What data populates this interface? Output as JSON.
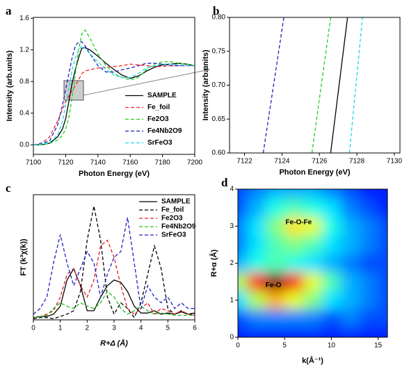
{
  "chart_data": [
    {
      "type": "line",
      "panel_label": "a",
      "xlabel": "Photon Energy (eV)",
      "ylabel": "Intensity (arb.units)",
      "xlim": [
        7100,
        7200
      ],
      "ylim": [
        -0.12,
        1.61
      ],
      "xticks": [
        7100,
        7120,
        7140,
        7160,
        7180,
        7200
      ],
      "yticks": [
        {
          "value": 0,
          "label": "0.0"
        },
        0.4,
        0.8,
        1.2,
        1.6
      ],
      "legend": "lower right",
      "x": [
        7100,
        7105,
        7110,
        7115,
        7118,
        7120,
        7122,
        7124,
        7126,
        7128,
        7130,
        7132,
        7135,
        7140,
        7145,
        7150,
        7155,
        7160,
        7165,
        7170,
        7175,
        7180,
        7185,
        7190,
        7195,
        7200
      ],
      "series": [
        {
          "name": "SAMPLE",
          "color": "#000000",
          "dashed": false,
          "values": [
            0,
            0.0,
            0.02,
            0.1,
            0.2,
            0.33,
            0.55,
            0.78,
            0.95,
            1.1,
            1.22,
            1.23,
            1.2,
            1.12,
            1.03,
            0.95,
            0.88,
            0.84,
            0.87,
            0.93,
            0.98,
            1.01,
            1.02,
            1.03,
            1.02,
            1.0
          ]
        },
        {
          "name": "Fe_foil",
          "color": "#ff2020",
          "dashed": true,
          "values": [
            0,
            0.02,
            0.1,
            0.3,
            0.45,
            0.55,
            0.62,
            0.68,
            0.75,
            0.82,
            0.9,
            0.93,
            0.95,
            0.97,
            0.98,
            0.99,
            1.0,
            1.02,
            1.01,
            1.0,
            0.99,
            0.99,
            1.0,
            1.0,
            1.0,
            1.0
          ]
        },
        {
          "name": "Fe2O3",
          "color": "#20d020",
          "dashed": true,
          "values": [
            0,
            0,
            0.02,
            0.06,
            0.12,
            0.2,
            0.35,
            0.6,
            0.9,
            1.2,
            1.4,
            1.45,
            1.35,
            1.15,
            1.0,
            0.9,
            0.85,
            0.82,
            0.85,
            0.95,
            1.02,
            1.05,
            1.05,
            1.03,
            1.02,
            1.0
          ]
        },
        {
          "name": "Fe4Nb2O9",
          "color": "#2020c0",
          "dashed": true,
          "values": [
            0,
            0.02,
            0.05,
            0.25,
            0.5,
            0.7,
            0.9,
            1.1,
            1.25,
            1.3,
            1.3,
            1.25,
            1.15,
            1.0,
            0.92,
            0.92,
            0.95,
            0.97,
            1.0,
            1.03,
            1.03,
            1.02,
            1.0,
            1.0,
            1.0,
            1.0
          ]
        },
        {
          "name": "SrFeO3",
          "color": "#20d8e8",
          "dashed": true,
          "values": [
            0,
            0.01,
            0.03,
            0.12,
            0.3,
            0.5,
            0.7,
            0.95,
            1.1,
            1.2,
            1.25,
            1.22,
            1.15,
            1.05,
            0.95,
            0.88,
            0.85,
            0.85,
            0.9,
            0.97,
            1.0,
            1.02,
            1.02,
            1.01,
            1.0,
            1.0
          ]
        }
      ]
    },
    {
      "type": "line",
      "panel_label": "b",
      "xlabel": "Photon Energy (eV)",
      "ylabel": "Intensity (arb.units)",
      "xlim": [
        7121.2,
        7130.3
      ],
      "ylim": [
        0.6,
        0.8
      ],
      "xticks": [
        7122,
        7124,
        7126,
        7128,
        7130
      ],
      "yticks": [
        {
          "value": 0.6,
          "label": "0.60"
        },
        0.65,
        {
          "value": 0.7,
          "label": "0.70"
        },
        0.75,
        {
          "value": 0.8,
          "label": "0.80"
        }
      ],
      "series": [
        {
          "color": "#2020c0",
          "dashed": true,
          "x": [
            7123.0,
            7124.1
          ],
          "values": [
            0.6,
            0.8
          ]
        },
        {
          "color": "#20d020",
          "dashed": true,
          "x": [
            7125.6,
            7126.6
          ],
          "values": [
            0.6,
            0.8
          ]
        },
        {
          "color": "#000000",
          "dashed": false,
          "x": [
            7126.6,
            7127.5
          ],
          "values": [
            0.6,
            0.8
          ]
        },
        {
          "color": "#20d8e8",
          "dashed": true,
          "x": [
            7127.6,
            7128.3
          ],
          "values": [
            0.6,
            0.8
          ]
        }
      ]
    },
    {
      "type": "line",
      "panel_label": "c",
      "xlabel": "R+Δ (Å)",
      "ylabel": "FT (k³χ(k))",
      "xlim": [
        0,
        6
      ],
      "ylim": [
        0,
        1.1
      ],
      "xticks": [
        0,
        1,
        2,
        3,
        4,
        5,
        6
      ],
      "legend": "upper right",
      "x": [
        0,
        0.25,
        0.5,
        0.75,
        1,
        1.25,
        1.5,
        1.75,
        2,
        2.25,
        2.5,
        2.75,
        3,
        3.25,
        3.5,
        3.75,
        4,
        4.25,
        4.5,
        4.75,
        5,
        5.25,
        5.5,
        5.75,
        6
      ],
      "series": [
        {
          "name": "SAMPLE",
          "color": "#000000",
          "dashed": false,
          "values": [
            0.02,
            0.03,
            0.03,
            0.05,
            0.12,
            0.35,
            0.45,
            0.3,
            0.08,
            0.08,
            0.2,
            0.3,
            0.35,
            0.33,
            0.25,
            0.12,
            0.06,
            0.06,
            0.08,
            0.05,
            0.06,
            0.05,
            0.07,
            0.05,
            0.06
          ]
        },
        {
          "name": "Fe_foil",
          "color": "#000000",
          "dashed": true,
          "values": [
            0.01,
            0.02,
            0.02,
            0.01,
            0.03,
            0.05,
            0.08,
            0.25,
            0.7,
            1.0,
            0.7,
            0.2,
            0.05,
            0.15,
            0.1,
            0.02,
            0.15,
            0.4,
            0.65,
            0.45,
            0.1,
            0.05,
            0.08,
            0.05,
            0.05
          ]
        },
        {
          "name": "Fe2O3",
          "color": "#e02020",
          "dashed": true,
          "values": [
            0.02,
            0.03,
            0.05,
            0.08,
            0.2,
            0.4,
            0.45,
            0.3,
            0.2,
            0.35,
            0.65,
            0.7,
            0.55,
            0.3,
            0.1,
            0.05,
            0.1,
            0.15,
            0.05,
            0.1,
            0.08,
            0.05,
            0.08,
            0.05,
            0.04
          ]
        },
        {
          "name": "Fe4Nb2O9",
          "color": "#20c020",
          "dashed": true,
          "values": [
            0.02,
            0.03,
            0.04,
            0.1,
            0.15,
            0.12,
            0.1,
            0.15,
            0.12,
            0.1,
            0.15,
            0.25,
            0.2,
            0.1,
            0.05,
            0.08,
            0.12,
            0.08,
            0.05,
            0.06,
            0.05,
            0.04,
            0.04,
            0.04,
            0.04
          ]
        },
        {
          "name": "SrFeO3",
          "color": "#2020c0",
          "dashed": true,
          "values": [
            0.05,
            0.1,
            0.2,
            0.5,
            0.75,
            0.5,
            0.3,
            0.45,
            0.6,
            0.5,
            0.2,
            0.4,
            0.55,
            0.6,
            0.9,
            0.5,
            0.1,
            0.3,
            0.2,
            0.15,
            0.2,
            0.1,
            0.15,
            0.1,
            0.1
          ]
        }
      ]
    },
    {
      "type": "heatmap",
      "panel_label": "d",
      "xlabel": "k(Å⁻¹)",
      "ylabel": "R+α (Å)",
      "xlim": [
        0,
        16
      ],
      "ylim": [
        0,
        4
      ],
      "xticks": [
        0,
        5,
        10,
        15
      ],
      "yticks": [
        0,
        1,
        2,
        3,
        4
      ],
      "x": [
        0,
        2,
        4,
        6,
        8,
        10,
        12,
        14,
        16
      ],
      "y": [
        0,
        0.5,
        1,
        1.5,
        2,
        2.5,
        3,
        3.5,
        4
      ],
      "z": [
        [
          0.15,
          0.15,
          0.15,
          0.15,
          0.15,
          0.15,
          0.15,
          0.15,
          0.15
        ],
        [
          0.2,
          0.25,
          0.25,
          0.25,
          0.25,
          0.2,
          0.25,
          0.2,
          0.2
        ],
        [
          0.35,
          0.55,
          0.7,
          0.6,
          0.5,
          0.35,
          0.3,
          0.25,
          0.2
        ],
        [
          0.55,
          0.85,
          1.0,
          0.85,
          0.6,
          0.45,
          0.3,
          0.25,
          0.2
        ],
        [
          0.3,
          0.4,
          0.45,
          0.4,
          0.35,
          0.3,
          0.25,
          0.2,
          0.2
        ],
        [
          0.25,
          0.35,
          0.45,
          0.5,
          0.45,
          0.35,
          0.3,
          0.25,
          0.2
        ],
        [
          0.25,
          0.35,
          0.5,
          0.65,
          0.6,
          0.4,
          0.3,
          0.25,
          0.2
        ],
        [
          0.2,
          0.3,
          0.4,
          0.45,
          0.4,
          0.35,
          0.25,
          0.2,
          0.15
        ],
        [
          0.2,
          0.25,
          0.3,
          0.3,
          0.3,
          0.25,
          0.2,
          0.15,
          0.15
        ]
      ],
      "annotations": [
        {
          "text": "Fe-O-Fe",
          "x": 6.5,
          "y": 3.1
        },
        {
          "text": "Fe-O",
          "x": 3.8,
          "y": 1.4
        }
      ]
    }
  ]
}
